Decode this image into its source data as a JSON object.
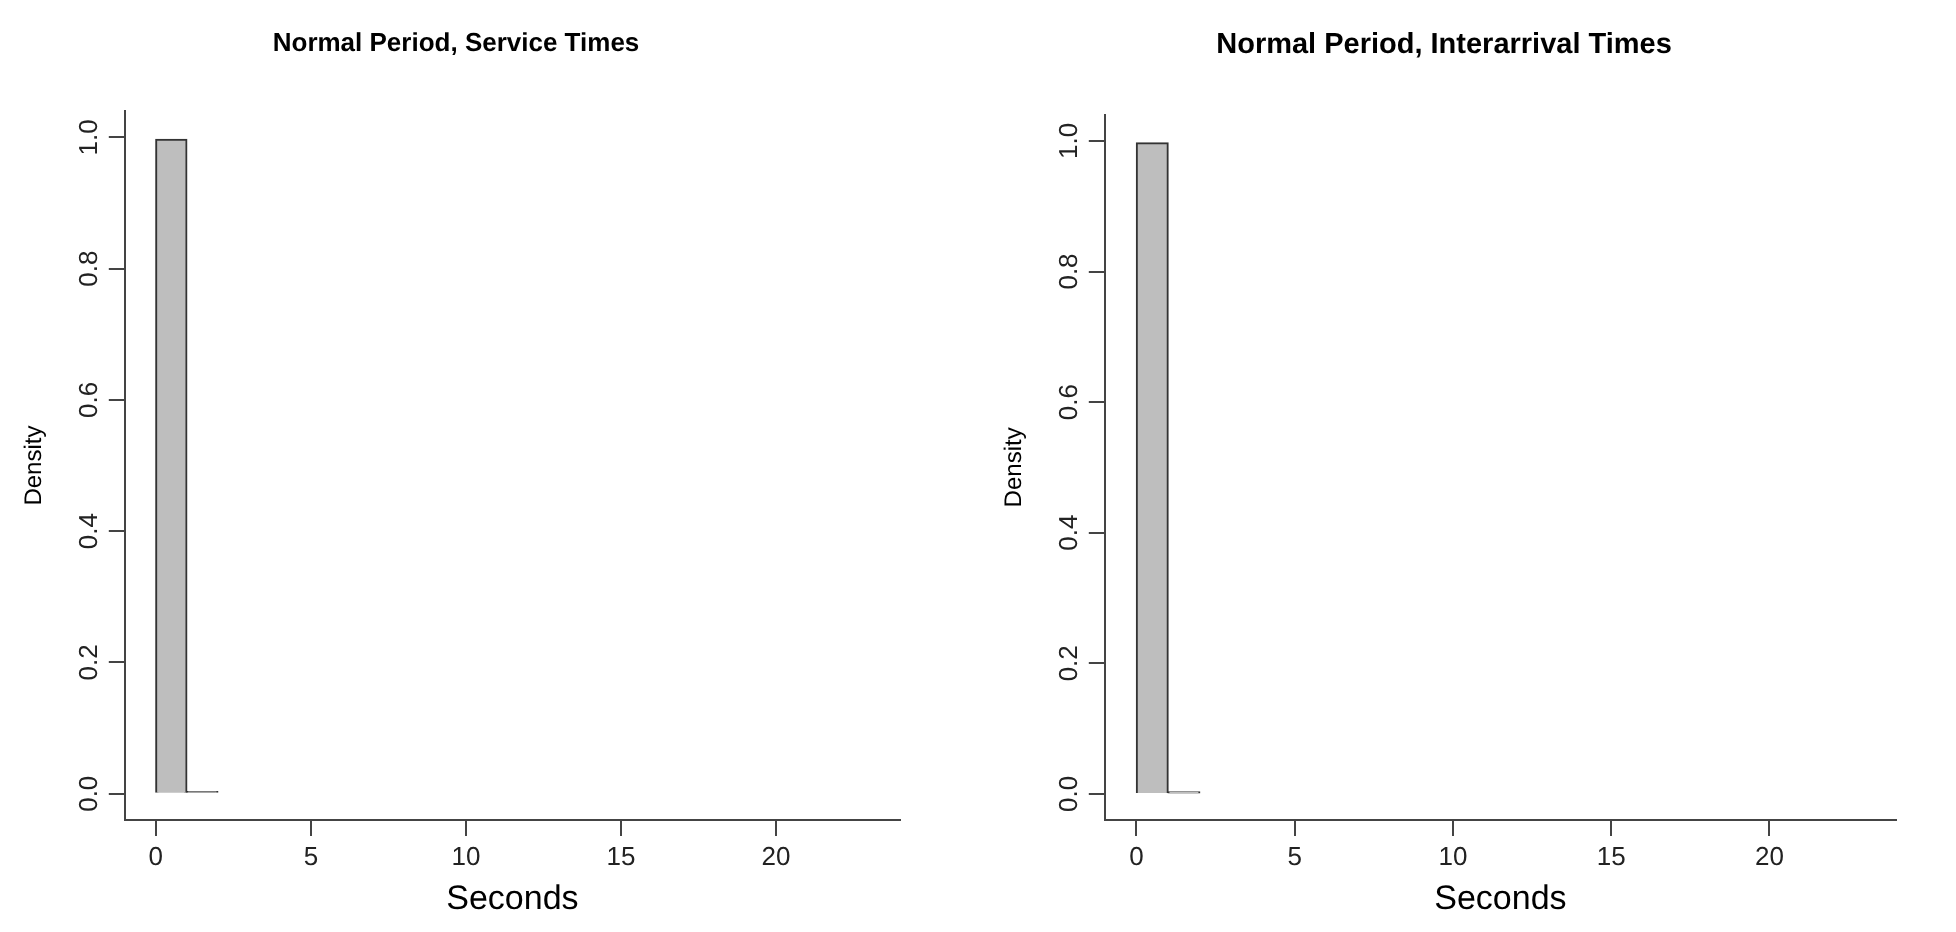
{
  "chart_data": [
    {
      "type": "histogram",
      "title": "Normal Period, Service Times",
      "xlabel": "Seconds",
      "ylabel": "Density",
      "bins": [
        0,
        1,
        2,
        3,
        4,
        5,
        6,
        7,
        8,
        9,
        10,
        11,
        12,
        13,
        14,
        15,
        16,
        17,
        18,
        19,
        20,
        21,
        22,
        23
      ],
      "values": [
        0.997,
        0.003,
        0,
        0,
        0,
        0,
        0,
        0,
        0,
        0,
        0,
        0,
        0,
        0,
        0,
        0,
        0,
        0,
        0,
        0,
        0,
        0,
        0
      ],
      "color": "#bebebe",
      "xlim": [
        -1,
        24
      ],
      "xticks": [
        0,
        5,
        10,
        15,
        20
      ],
      "ylim": [
        -0.04,
        1.04
      ],
      "yticks": [
        {
          "value": 0,
          "label": "0.0"
        },
        {
          "value": 0.2,
          "label": "0.2"
        },
        {
          "value": 0.4,
          "label": "0.4"
        },
        {
          "value": 0.6,
          "label": "0.6"
        },
        {
          "value": 0.8,
          "label": "0.8"
        },
        {
          "value": 1,
          "label": "1.0"
        }
      ],
      "grid": false,
      "legend": false
    },
    {
      "type": "histogram",
      "title": "Normal Period, Interarrival Times",
      "xlabel": "Seconds",
      "ylabel": "Density",
      "bins": [
        0,
        1,
        2,
        3,
        4,
        5,
        6,
        7,
        8,
        9,
        10,
        11,
        12,
        13,
        14,
        15,
        16,
        17,
        18,
        19,
        20,
        21,
        22,
        23
      ],
      "values": [
        0.997,
        0.003,
        0,
        0,
        0,
        0,
        0,
        0,
        0,
        0,
        0,
        0,
        0,
        0,
        0,
        0,
        0,
        0,
        0,
        0,
        0,
        0,
        0
      ],
      "color": "#bebebe",
      "xlim": [
        -1,
        24
      ],
      "xticks": [
        0,
        5,
        10,
        15,
        20
      ],
      "ylim": [
        -0.04,
        1.04
      ],
      "yticks": [
        {
          "value": 0,
          "label": "0.0"
        },
        {
          "value": 0.2,
          "label": "0.2"
        },
        {
          "value": 0.4,
          "label": "0.4"
        },
        {
          "value": 0.6,
          "label": "0.6"
        },
        {
          "value": 0.8,
          "label": "0.8"
        },
        {
          "value": 1,
          "label": "1.0"
        }
      ],
      "grid": false,
      "legend": false
    }
  ]
}
